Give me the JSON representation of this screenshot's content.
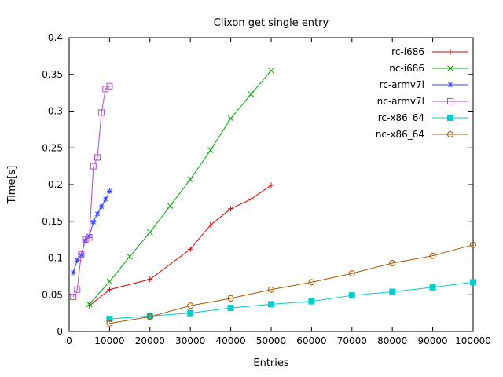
{
  "chart_data": {
    "type": "line",
    "title": "Clixon get single entry",
    "xlabel": "Entries",
    "ylabel": "Time[s]",
    "xlim": [
      0,
      100000
    ],
    "ylim": [
      0,
      0.4
    ],
    "x_tick_labels": [
      "0",
      "10000",
      "20000",
      "30000",
      "40000",
      "50000",
      "60000",
      "70000",
      "80000",
      "90000",
      "100000"
    ],
    "y_tick_labels": [
      "0",
      "0.05",
      "0.1",
      "0.15",
      "0.2",
      "0.25",
      "0.3",
      "0.35",
      "0.4"
    ],
    "grid": false,
    "legend_position": "top-right-inside",
    "series": [
      {
        "name": "rc-i686",
        "color": "#dd0000",
        "marker": "plus",
        "x": [
          5000,
          10000,
          20000,
          30000,
          35000,
          40000,
          45000,
          50000
        ],
        "y": [
          0.035,
          0.057,
          0.071,
          0.112,
          0.145,
          0.167,
          0.18,
          0.199
        ]
      },
      {
        "name": "nc-i686",
        "color": "#00aa00",
        "marker": "cross",
        "x": [
          5000,
          10000,
          15000,
          20000,
          25000,
          30000,
          35000,
          40000,
          45000,
          50000
        ],
        "y": [
          0.037,
          0.068,
          0.102,
          0.135,
          0.171,
          0.207,
          0.247,
          0.29,
          0.323,
          0.355
        ]
      },
      {
        "name": "rc-armv7l",
        "color": "#3344ff",
        "marker": "asterisk",
        "x": [
          1000,
          2000,
          3000,
          4000,
          5000,
          6000,
          7000,
          8000,
          9000,
          10000
        ],
        "y": [
          0.08,
          0.097,
          0.104,
          0.124,
          0.13,
          0.149,
          0.16,
          0.17,
          0.18,
          0.191
        ]
      },
      {
        "name": "nc-armv7l",
        "color": "#b34dd1",
        "marker": "square-open",
        "x": [
          1000,
          2000,
          3000,
          4000,
          5000,
          6000,
          7000,
          8000,
          9000,
          10000
        ],
        "y": [
          0.047,
          0.057,
          0.105,
          0.125,
          0.128,
          0.225,
          0.237,
          0.298,
          0.33,
          0.334
        ]
      },
      {
        "name": "rc-x86_64",
        "color": "#00cccc",
        "marker": "square-filled",
        "x": [
          10000,
          20000,
          30000,
          40000,
          50000,
          60000,
          70000,
          80000,
          90000,
          100000
        ],
        "y": [
          0.017,
          0.021,
          0.025,
          0.032,
          0.037,
          0.041,
          0.049,
          0.054,
          0.06,
          0.067
        ]
      },
      {
        "name": "nc-x86_64",
        "color": "#aa5500",
        "marker": "circle-open",
        "x": [
          10000,
          20000,
          30000,
          40000,
          50000,
          60000,
          70000,
          80000,
          90000,
          100000
        ],
        "y": [
          0.011,
          0.02,
          0.035,
          0.045,
          0.057,
          0.067,
          0.079,
          0.093,
          0.103,
          0.118
        ]
      }
    ]
  }
}
